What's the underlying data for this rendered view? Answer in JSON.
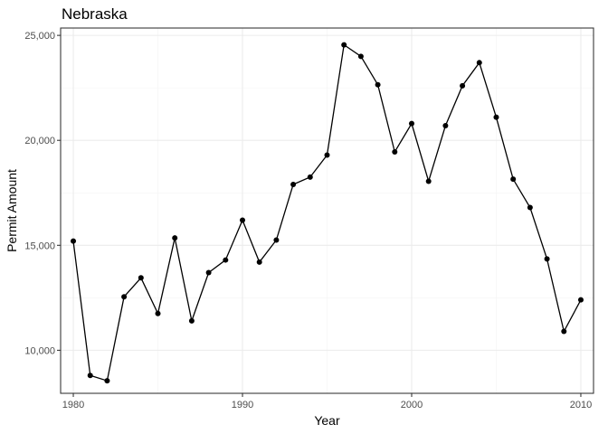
{
  "chart_data": {
    "type": "line",
    "title": "Nebraska",
    "xlabel": "Year",
    "ylabel": "Permit Amount",
    "xlim": [
      1979.25,
      2010.75
    ],
    "ylim": [
      7950,
      25350
    ],
    "x_ticks": [
      1980,
      1990,
      2000,
      2010
    ],
    "x_tick_labels": [
      "1980",
      "1990",
      "2000",
      "2010"
    ],
    "y_ticks": [
      10000,
      15000,
      20000,
      25000
    ],
    "y_tick_labels": [
      "10,000",
      "15,000",
      "20,000",
      "25,000"
    ],
    "grid": true,
    "theme": "bw",
    "series": [
      {
        "color": "#000000",
        "x": [
          1980,
          1981,
          1982,
          1983,
          1984,
          1985,
          1986,
          1987,
          1988,
          1989,
          1990,
          1991,
          1992,
          1993,
          1994,
          1995,
          1996,
          1997,
          1998,
          1999,
          2000,
          2001,
          2002,
          2003,
          2004,
          2005,
          2006,
          2007,
          2008,
          2009,
          2010
        ],
        "y": [
          15200,
          8800,
          8550,
          12550,
          13450,
          11750,
          15350,
          11400,
          13700,
          14300,
          16200,
          14200,
          15250,
          17900,
          18250,
          19300,
          24550,
          24000,
          22650,
          19450,
          20800,
          18050,
          20700,
          22600,
          23700,
          21100,
          18150,
          16800,
          14350,
          10900,
          12400
        ]
      }
    ]
  }
}
